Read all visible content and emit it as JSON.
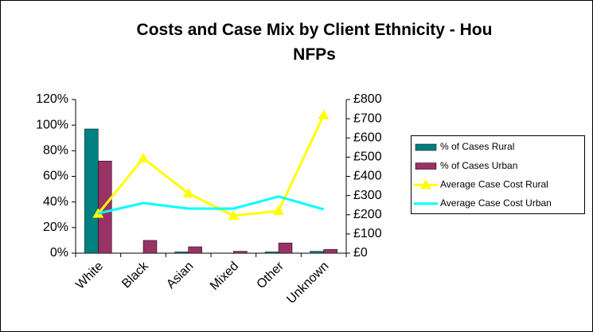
{
  "chart_data": {
    "type": "bar",
    "title": "Costs and Case Mix by Client Ethnicity - Hou NFPs",
    "categories": [
      "White",
      "Black",
      "Asian",
      "Mixed",
      "Other",
      "Unknown"
    ],
    "series": [
      {
        "name": "% of Cases Rural",
        "type": "bar",
        "color": "#008080",
        "values": [
          97,
          0,
          1,
          0,
          1,
          1.5
        ]
      },
      {
        "name": "% of Cases Urban",
        "type": "bar",
        "color": "#993366",
        "values": [
          72,
          10,
          5,
          1.5,
          8,
          3
        ]
      },
      {
        "name": "Average Case Cost Rural",
        "type": "line",
        "axis": "y2",
        "marker": "triangle",
        "color": "#ffff00",
        "values": [
          205,
          494,
          311,
          195,
          220,
          718
        ]
      },
      {
        "name": "Average Case Cost Urban",
        "type": "line",
        "axis": "y2",
        "color": "#00ffff",
        "values": [
          207,
          261,
          232,
          232,
          295,
          228
        ]
      }
    ],
    "ylim": [
      0,
      120
    ],
    "yticks": [
      {
        "value": 0,
        "label": "0%"
      },
      {
        "value": 20,
        "label": "20%"
      },
      {
        "value": 40,
        "label": "40%"
      },
      {
        "value": 60,
        "label": "60%"
      },
      {
        "value": 80,
        "label": "80%"
      },
      {
        "value": 100,
        "label": "100%"
      },
      {
        "value": 120,
        "label": "120%"
      }
    ],
    "y2lim": [
      0,
      800
    ],
    "y2ticks": [
      {
        "value": 0,
        "label": "£0"
      },
      {
        "value": 100,
        "label": "£100"
      },
      {
        "value": 200,
        "label": "£200"
      },
      {
        "value": 300,
        "label": "£300"
      },
      {
        "value": 400,
        "label": "£400"
      },
      {
        "value": 500,
        "label": "£500"
      },
      {
        "value": 600,
        "label": "£600"
      },
      {
        "value": 700,
        "label": "£700"
      },
      {
        "value": 800,
        "label": "£800"
      }
    ],
    "grid": false,
    "legend": "right"
  }
}
